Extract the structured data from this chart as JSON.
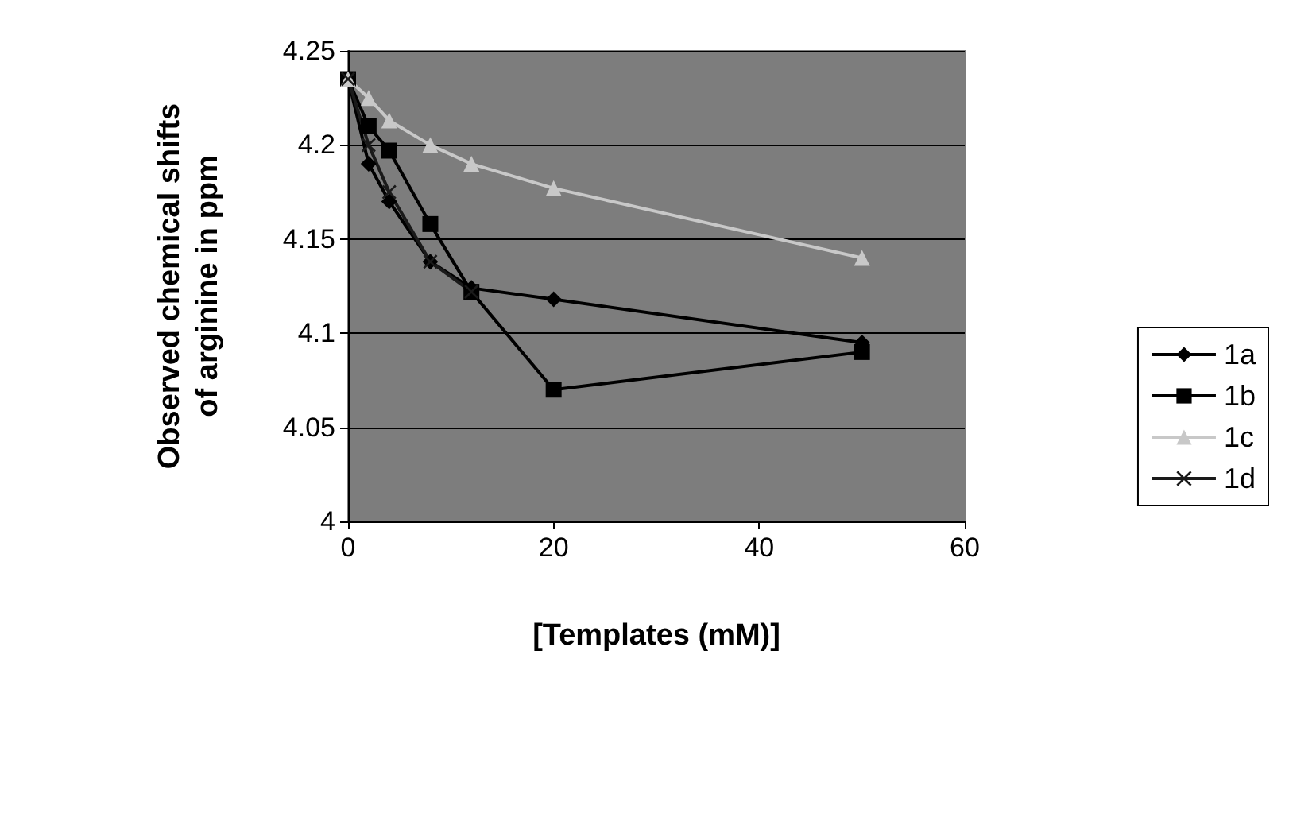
{
  "chart_data": {
    "type": "line",
    "xlabel": "[Templates (mM)]",
    "ylabel": "Observed chemical shifts\nof arginine in ppm",
    "x": [
      0,
      2,
      4,
      8,
      12,
      20,
      50
    ],
    "series": [
      {
        "name": "1a",
        "color": "#000000",
        "marker": "diamond",
        "values": [
          4.235,
          4.19,
          4.17,
          4.138,
          4.124,
          4.118,
          4.095
        ]
      },
      {
        "name": "1b",
        "color": "#000000",
        "marker": "square",
        "values": [
          4.235,
          4.21,
          4.197,
          4.158,
          4.122,
          4.07,
          4.09
        ]
      },
      {
        "name": "1c",
        "color": "#c8c8c8",
        "marker": "triangle",
        "values": [
          4.235,
          4.225,
          4.213,
          4.2,
          4.19,
          4.177,
          4.14
        ]
      },
      {
        "name": "1d",
        "color": "#1a1a1a",
        "marker": "cross",
        "x": [
          0,
          2,
          4,
          8,
          12
        ],
        "values": [
          4.235,
          4.2,
          4.175,
          4.138,
          4.122
        ]
      }
    ],
    "xlim": [
      0,
      60
    ],
    "xticks": [
      0,
      20,
      40,
      60
    ],
    "ylim": [
      4,
      4.25
    ],
    "yticks": [
      4,
      4.05,
      4.1,
      4.15,
      4.2,
      4.25
    ],
    "grid": "y",
    "legend": "right"
  }
}
